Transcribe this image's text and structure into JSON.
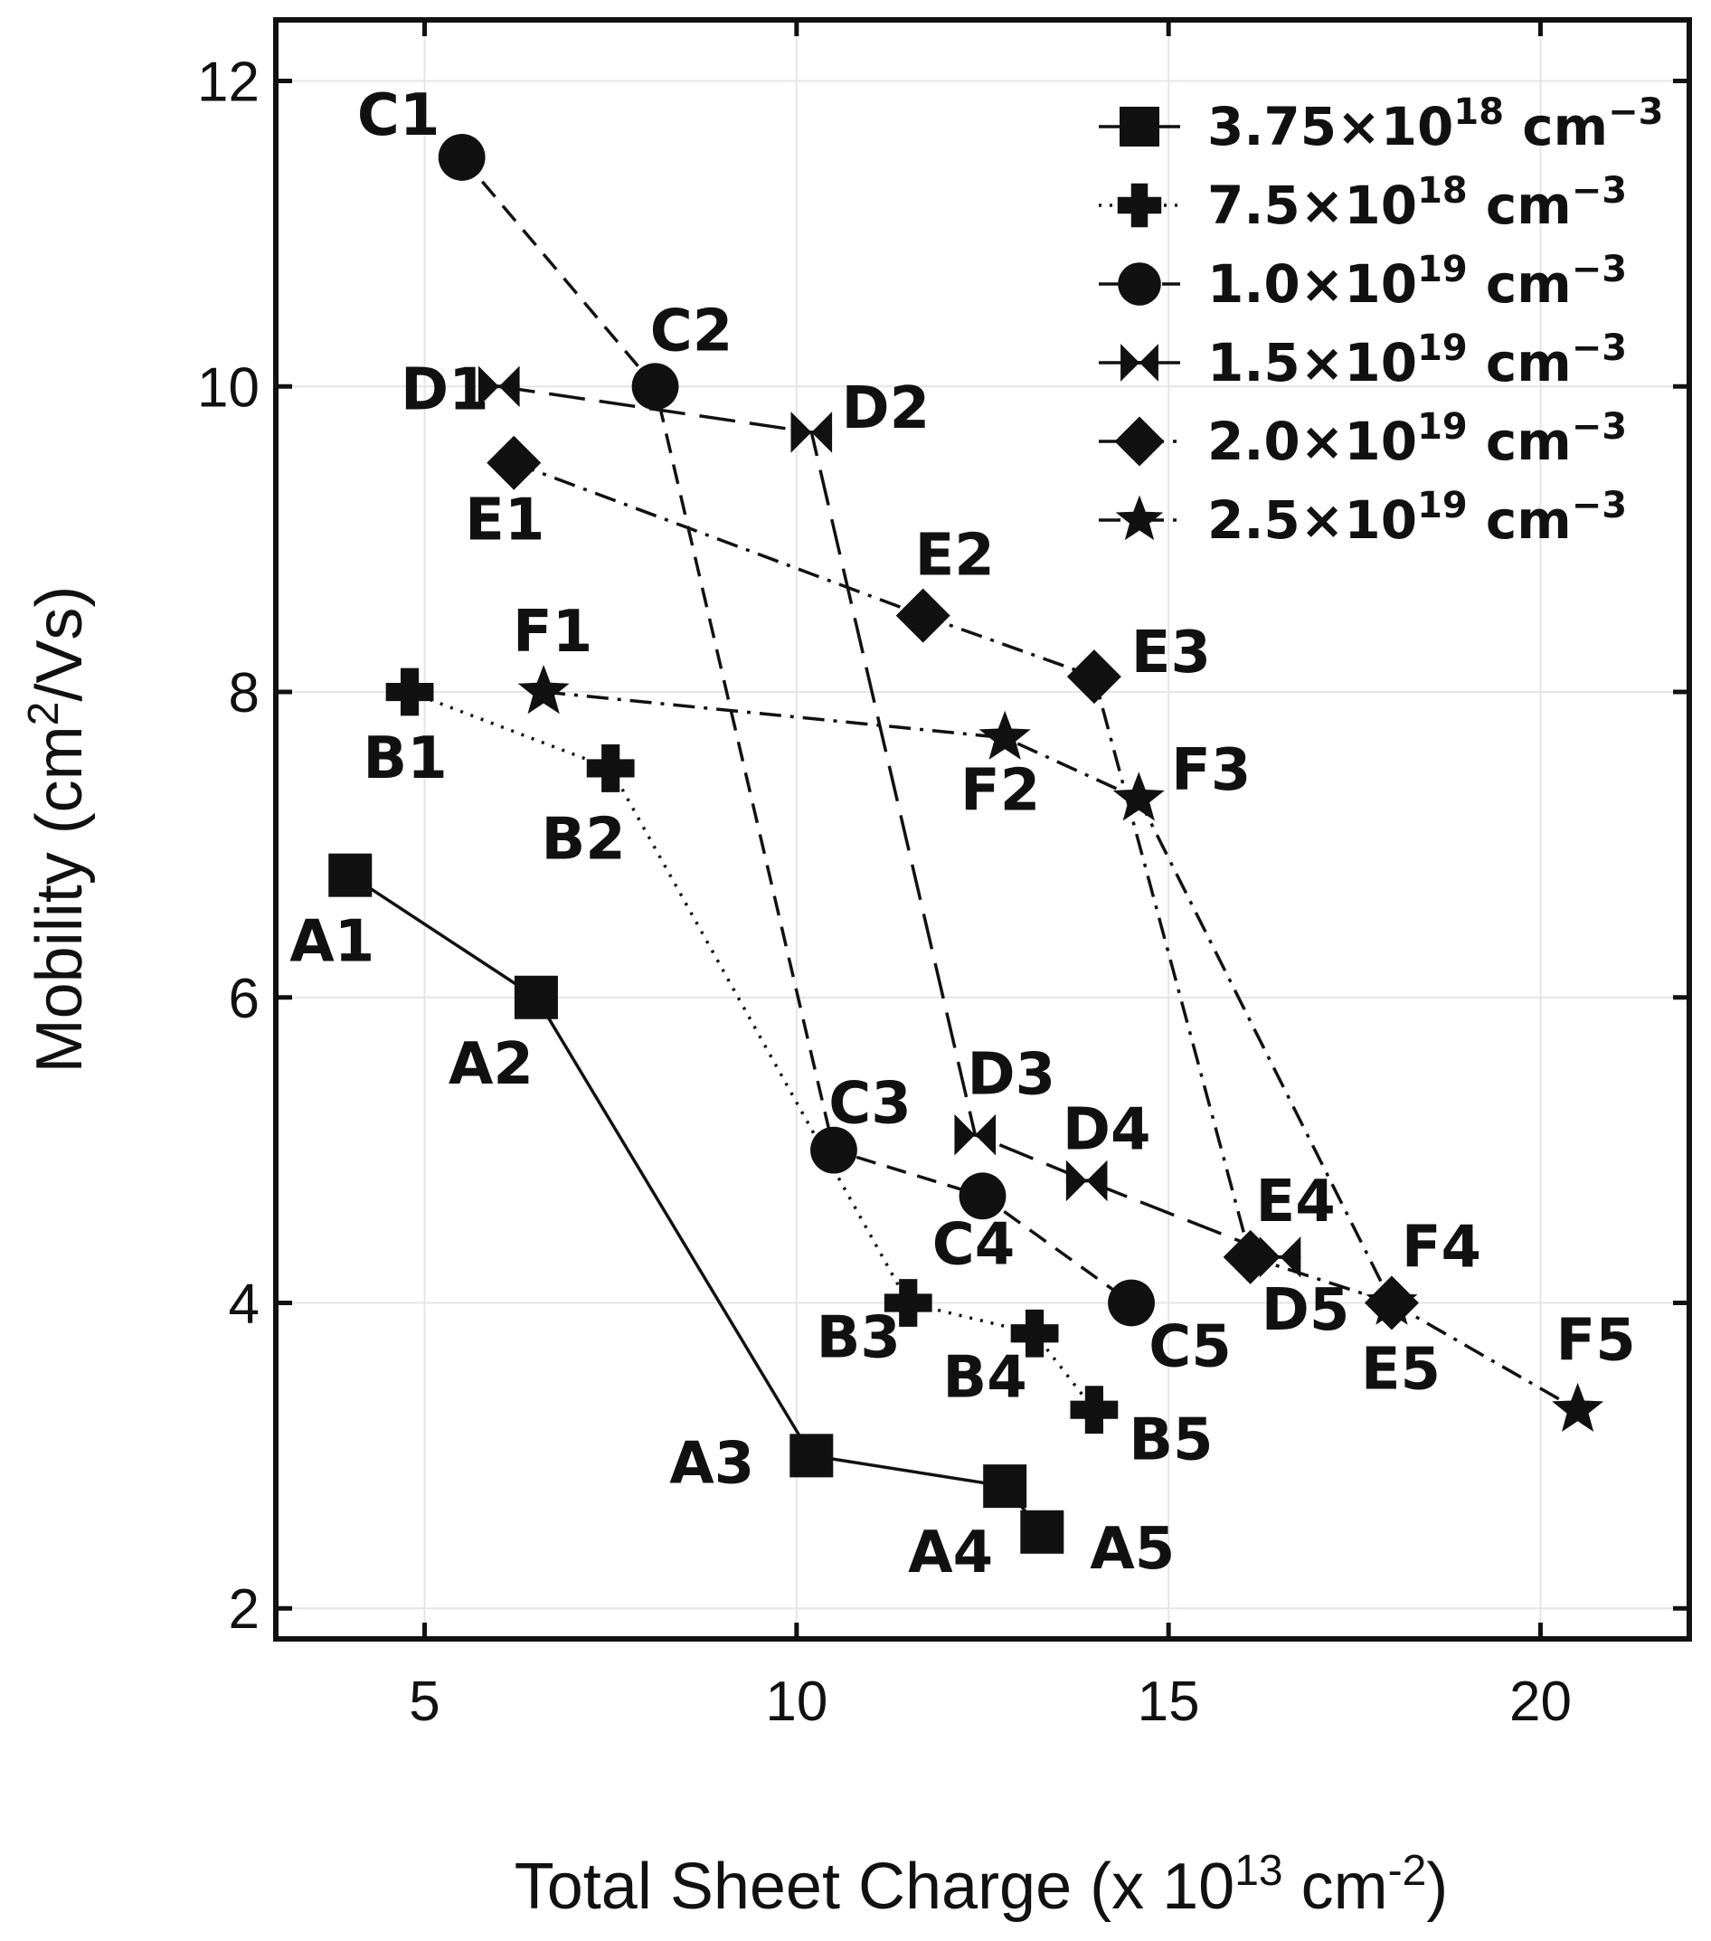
{
  "chart_data": {
    "type": "line",
    "title": "",
    "xlabel": "Total Sheet Charge (x 10^13 cm^-2)",
    "xlabel_parts": [
      "Total Sheet Charge (x 10",
      "13",
      " cm",
      "-2",
      ")"
    ],
    "ylabel": "Mobility (cm^2/Vs)",
    "ylabel_parts": [
      "Mobility (cm",
      "2",
      "/Vs)"
    ],
    "xlim": [
      3,
      22
    ],
    "ylim": [
      1.8,
      12.4
    ],
    "xticks": [
      5,
      10,
      15,
      20
    ],
    "yticks": [
      2,
      4,
      6,
      8,
      10,
      12
    ],
    "grid": true,
    "legend_position": "top-right",
    "series": [
      {
        "name": "3.75×10^18 cm^-3",
        "legend_parts": [
          "3.75×10",
          "18",
          " cm",
          "−3"
        ],
        "marker": "square",
        "linestyle": "solid",
        "color": "#111111",
        "points": [
          {
            "label": "A1",
            "x": 4.0,
            "y": 6.8
          },
          {
            "label": "A2",
            "x": 6.5,
            "y": 6.0
          },
          {
            "label": "A3",
            "x": 10.2,
            "y": 3.0
          },
          {
            "label": "A4",
            "x": 12.8,
            "y": 2.8
          },
          {
            "label": "A5",
            "x": 13.3,
            "y": 2.5
          }
        ]
      },
      {
        "name": "7.5×10^18 cm^-3",
        "legend_parts": [
          "7.5×10",
          "18",
          " cm",
          "−3"
        ],
        "marker": "plus",
        "linestyle": "dotted",
        "color": "#111111",
        "points": [
          {
            "label": "B1",
            "x": 4.8,
            "y": 8.0
          },
          {
            "label": "B2",
            "x": 7.5,
            "y": 7.5
          },
          {
            "label": "B3",
            "x": 11.5,
            "y": 4.0
          },
          {
            "label": "B4",
            "x": 13.2,
            "y": 3.8
          },
          {
            "label": "B5",
            "x": 14.0,
            "y": 3.3
          }
        ]
      },
      {
        "name": "1.0×10^19 cm^-3",
        "legend_parts": [
          "1.0×10",
          "19",
          " cm",
          "−3"
        ],
        "marker": "circle",
        "linestyle": "dashed",
        "color": "#111111",
        "points": [
          {
            "label": "C1",
            "x": 5.5,
            "y": 11.5
          },
          {
            "label": "C2",
            "x": 8.1,
            "y": 10.0
          },
          {
            "label": "C3",
            "x": 10.5,
            "y": 5.0
          },
          {
            "label": "C4",
            "x": 12.5,
            "y": 4.7
          },
          {
            "label": "C5",
            "x": 14.5,
            "y": 4.0
          }
        ]
      },
      {
        "name": "1.5×10^19 cm^-3",
        "legend_parts": [
          "1.5×10",
          "19",
          " cm",
          "−3"
        ],
        "marker": "bowtie",
        "linestyle": "longdash",
        "color": "#111111",
        "points": [
          {
            "label": "D1",
            "x": 6.0,
            "y": 10.0
          },
          {
            "label": "D2",
            "x": 10.2,
            "y": 9.7
          },
          {
            "label": "D3",
            "x": 12.4,
            "y": 5.1
          },
          {
            "label": "D4",
            "x": 13.9,
            "y": 4.8
          },
          {
            "label": "D5",
            "x": 16.5,
            "y": 4.3
          }
        ]
      },
      {
        "name": "2.0×10^19 cm^-3",
        "legend_parts": [
          "2.0×10",
          "19",
          " cm",
          "−3"
        ],
        "marker": "diamond",
        "linestyle": "dashdot",
        "color": "#111111",
        "points": [
          {
            "label": "E1",
            "x": 6.2,
            "y": 9.5
          },
          {
            "label": "E2",
            "x": 11.7,
            "y": 8.5
          },
          {
            "label": "E3",
            "x": 14.0,
            "y": 8.1
          },
          {
            "label": "E4",
            "x": 16.1,
            "y": 4.3
          },
          {
            "label": "E5",
            "x": 18.0,
            "y": 4.0
          }
        ]
      },
      {
        "name": "2.5×10^19 cm^-3",
        "legend_parts": [
          "2.5×10",
          "19",
          " cm",
          "−3"
        ],
        "marker": "star",
        "linestyle": "dashdot",
        "color": "#111111",
        "points": [
          {
            "label": "F1",
            "x": 6.6,
            "y": 8.0
          },
          {
            "label": "F2",
            "x": 12.8,
            "y": 7.7
          },
          {
            "label": "F3",
            "x": 14.6,
            "y": 7.3
          },
          {
            "label": "F4",
            "x": 18.0,
            "y": 4.0
          },
          {
            "label": "F5",
            "x": 20.5,
            "y": 3.3
          }
        ]
      }
    ]
  }
}
